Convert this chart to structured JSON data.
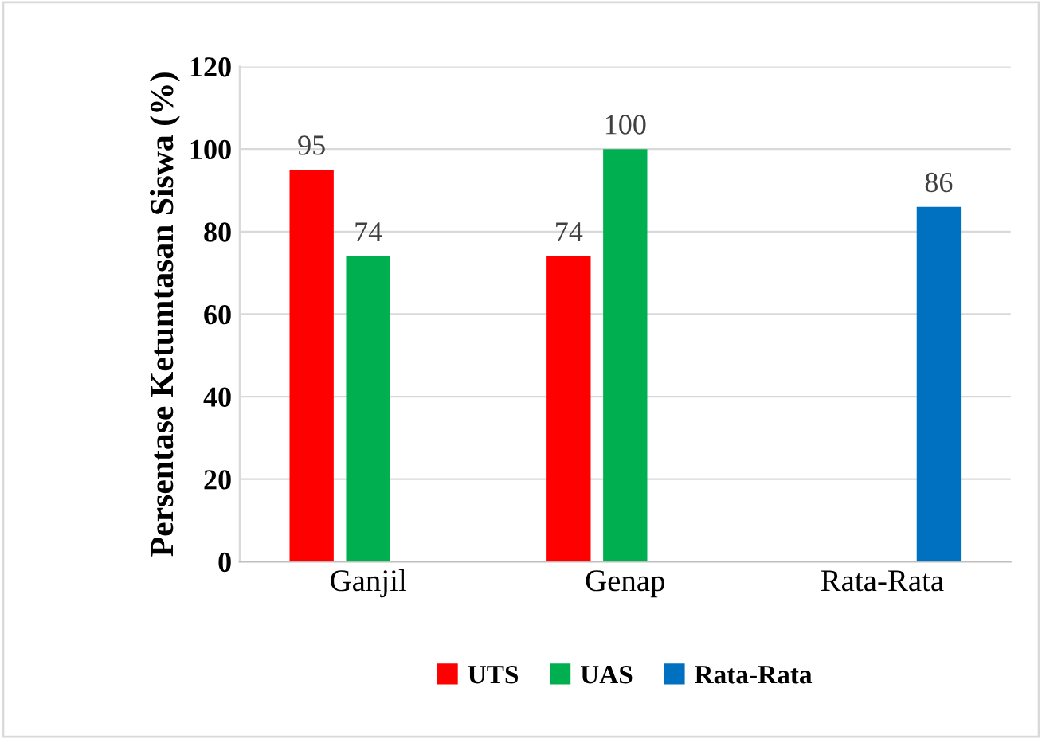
{
  "chart_data": {
    "type": "bar",
    "ylabel": "Persentase Ketumtasan Siswa (%)",
    "categories": [
      "Ganjil",
      "Genap",
      "Rata-Rata"
    ],
    "series": [
      {
        "name": "UTS",
        "color": "#ff0000",
        "values": [
          95,
          74,
          null
        ]
      },
      {
        "name": "UAS",
        "color": "#00b050",
        "values": [
          74,
          100,
          null
        ]
      },
      {
        "name": "Rata-Rata",
        "color": "#0070c0",
        "values": [
          null,
          null,
          86
        ]
      }
    ],
    "ylim": [
      0,
      120
    ],
    "yticks": [
      0,
      20,
      40,
      60,
      80,
      100,
      120
    ],
    "grid": "y",
    "legend": "bottom",
    "data_labels": true
  }
}
